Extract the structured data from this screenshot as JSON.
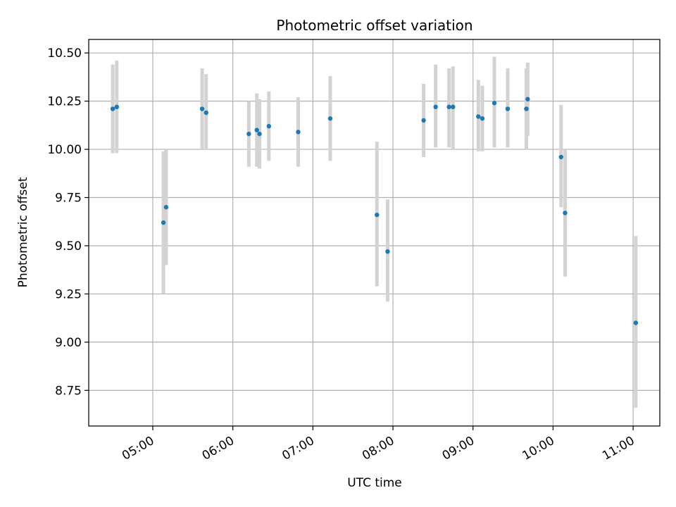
{
  "chart_data": {
    "type": "scatter",
    "title": "Photometric offset variation",
    "xlabel": "UTC time",
    "ylabel": "Photometric offset",
    "x_is_time": true,
    "xlim": [
      "04:12",
      "11:20"
    ],
    "ylim": [
      8.565,
      10.57
    ],
    "x_ticks": [
      "05:00",
      "06:00",
      "07:00",
      "08:00",
      "09:00",
      "10:00",
      "11:00"
    ],
    "y_ticks": [
      "8.75",
      "9.00",
      "9.25",
      "9.50",
      "9.75",
      "10.00",
      "10.25",
      "10.50"
    ],
    "grid": true,
    "colors": {
      "point": "#1f77b4",
      "errorbar": "#d3d3d3",
      "grid": "#b0b0b0"
    },
    "points": [
      {
        "t": "04:30",
        "y": 10.21,
        "lo": 9.98,
        "hi": 10.44
      },
      {
        "t": "04:33",
        "y": 10.22,
        "lo": 9.98,
        "hi": 10.46
      },
      {
        "t": "05:08",
        "y": 9.62,
        "lo": 9.25,
        "hi": 9.99
      },
      {
        "t": "05:10",
        "y": 9.7,
        "lo": 9.4,
        "hi": 10.0
      },
      {
        "t": "05:37",
        "y": 10.21,
        "lo": 10.0,
        "hi": 10.42
      },
      {
        "t": "05:40",
        "y": 10.19,
        "lo": 10.0,
        "hi": 10.39
      },
      {
        "t": "06:12",
        "y": 10.08,
        "lo": 9.91,
        "hi": 10.25
      },
      {
        "t": "06:18",
        "y": 10.1,
        "lo": 9.91,
        "hi": 10.29
      },
      {
        "t": "06:20",
        "y": 10.08,
        "lo": 9.9,
        "hi": 10.26
      },
      {
        "t": "06:27",
        "y": 10.12,
        "lo": 9.94,
        "hi": 10.3
      },
      {
        "t": "06:49",
        "y": 10.09,
        "lo": 9.91,
        "hi": 10.27
      },
      {
        "t": "07:13",
        "y": 10.16,
        "lo": 9.94,
        "hi": 10.38
      },
      {
        "t": "07:48",
        "y": 9.66,
        "lo": 9.29,
        "hi": 10.04
      },
      {
        "t": "07:56",
        "y": 9.47,
        "lo": 9.21,
        "hi": 9.74
      },
      {
        "t": "08:23",
        "y": 10.15,
        "lo": 9.96,
        "hi": 10.34
      },
      {
        "t": "08:32",
        "y": 10.22,
        "lo": 10.01,
        "hi": 10.44
      },
      {
        "t": "08:42",
        "y": 10.22,
        "lo": 10.01,
        "hi": 10.42
      },
      {
        "t": "08:45",
        "y": 10.22,
        "lo": 10.0,
        "hi": 10.43
      },
      {
        "t": "09:04",
        "y": 10.17,
        "lo": 9.99,
        "hi": 10.36
      },
      {
        "t": "09:07",
        "y": 10.16,
        "lo": 9.99,
        "hi": 10.33
      },
      {
        "t": "09:16",
        "y": 10.24,
        "lo": 10.01,
        "hi": 10.48
      },
      {
        "t": "09:26",
        "y": 10.21,
        "lo": 10.01,
        "hi": 10.42
      },
      {
        "t": "09:40",
        "y": 10.21,
        "lo": 10.0,
        "hi": 10.42
      },
      {
        "t": "09:41",
        "y": 10.26,
        "lo": 10.07,
        "hi": 10.45
      },
      {
        "t": "10:06",
        "y": 9.96,
        "lo": 9.7,
        "hi": 10.23
      },
      {
        "t": "10:09",
        "y": 9.67,
        "lo": 9.34,
        "hi": 10.0
      },
      {
        "t": "11:02",
        "y": 9.1,
        "lo": 8.66,
        "hi": 9.55
      }
    ]
  }
}
